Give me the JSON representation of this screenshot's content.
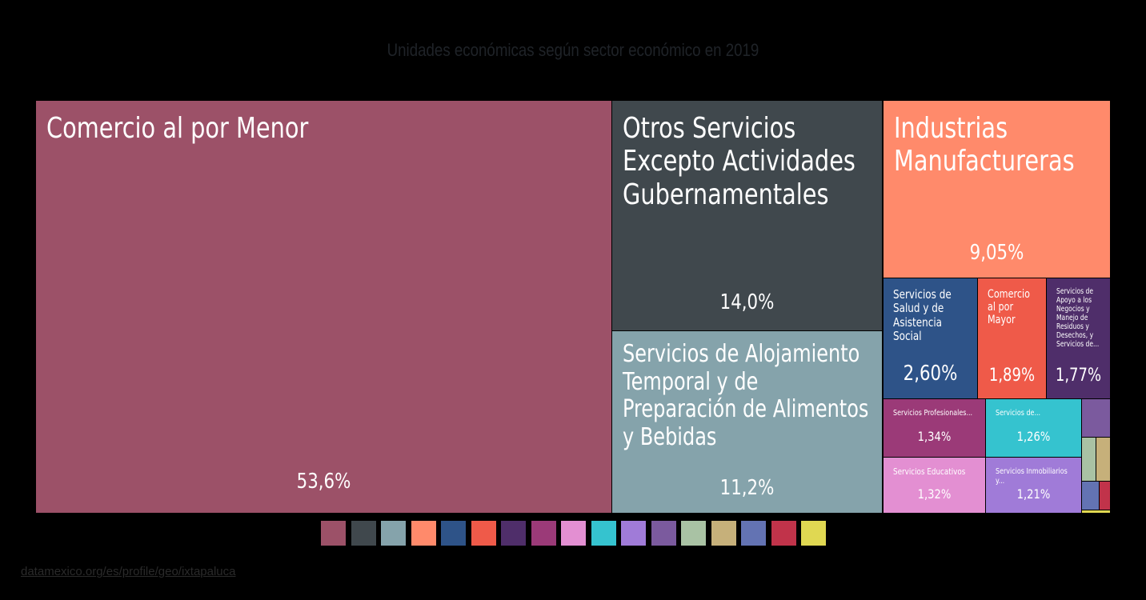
{
  "title": "Unidades económicas según sector económico en 2019",
  "source": "datamexico.org/es/profile/geo/ixtapaluca",
  "chart_data": {
    "type": "treemap",
    "title": "Unidades económicas según sector económico en 2019",
    "items": [
      {
        "name": "Comercio al por Menor",
        "label": "Comercio al por Menor",
        "value_label": "53,6%",
        "value": 53.6,
        "color": "#9c5168"
      },
      {
        "name": "Otros Servicios Excepto Actividades Gubernamentales",
        "label": "Otros Servicios Excepto Actividades Gubernamentales",
        "value_label": "14,0%",
        "value": 14.0,
        "color": "#40484d"
      },
      {
        "name": "Servicios de Alojamiento Temporal y de Preparación de Alimentos y Bebidas",
        "label": "Servicios de Alojamiento Temporal y de Preparación de Alimentos y Bebidas",
        "value_label": "11,2%",
        "value": 11.2,
        "color": "#85a3ab"
      },
      {
        "name": "Industrias Manufactureras",
        "label": "Industrias Manufactureras",
        "value_label": "9,05%",
        "value": 9.05,
        "color": "#ff8a6b"
      },
      {
        "name": "Servicios de Salud y de Asistencia Social",
        "label": "Servicios de Salud y de Asistencia Social",
        "value_label": "2,60%",
        "value": 2.6,
        "color": "#2e5388"
      },
      {
        "name": "Comercio al por Mayor",
        "label": "Comercio al por Mayor",
        "value_label": "1,89%",
        "value": 1.89,
        "color": "#ef5a49"
      },
      {
        "name": "Servicios de Apoyo a los Negocios y Manejo de Residuos y Desechos, y Servicios de...",
        "label": "Servicios de Apoyo a los Negocios y Manejo de Residuos y Desechos, y Servicios de...",
        "value_label": "1,77%",
        "value": 1.77,
        "color": "#4f2e6a"
      },
      {
        "name": "Servicios Profesionales...",
        "label": "Servicios Profesionales...",
        "value_label": "1,34%",
        "value": 1.34,
        "color": "#9b3a78"
      },
      {
        "name": "Servicios de...",
        "label": "Servicios de...",
        "value_label": "1,26%",
        "value": 1.26,
        "color": "#35c3cf"
      },
      {
        "name": "Servicios Educativos",
        "label": "Servicios Educativos",
        "value_label": "1,32%",
        "value": 1.32,
        "color": "#e38fd2"
      },
      {
        "name": "Servicios Inmobiliarios y...",
        "label": "Servicios Inmobiliarios y...",
        "value_label": "1,21%",
        "value": 1.21,
        "color": "#a07bd8"
      },
      {
        "name": "",
        "label": "",
        "value_label": "",
        "color": "#7b5a9e"
      },
      {
        "name": "",
        "label": "",
        "value_label": "",
        "color": "#a9c2a4"
      },
      {
        "name": "",
        "label": "",
        "value_label": "",
        "color": "#c6b07a"
      },
      {
        "name": "",
        "label": "",
        "value_label": "",
        "color": "#6373b3"
      },
      {
        "name": "",
        "label": "",
        "value_label": "",
        "color": "#c1334a"
      },
      {
        "name": "",
        "label": "",
        "value_label": "",
        "color": "#e0d852"
      }
    ],
    "legend_colors": [
      "#9c5168",
      "#40484d",
      "#85a3ab",
      "#ff8a6b",
      "#2e5388",
      "#ef5a49",
      "#4f2e6a",
      "#9b3a78",
      "#e38fd2",
      "#35c3cf",
      "#a07bd8",
      "#7b5a9e",
      "#a9c2a4",
      "#c6b07a",
      "#6373b3",
      "#c1334a",
      "#e0d852"
    ],
    "legend_placement": "bottom"
  }
}
